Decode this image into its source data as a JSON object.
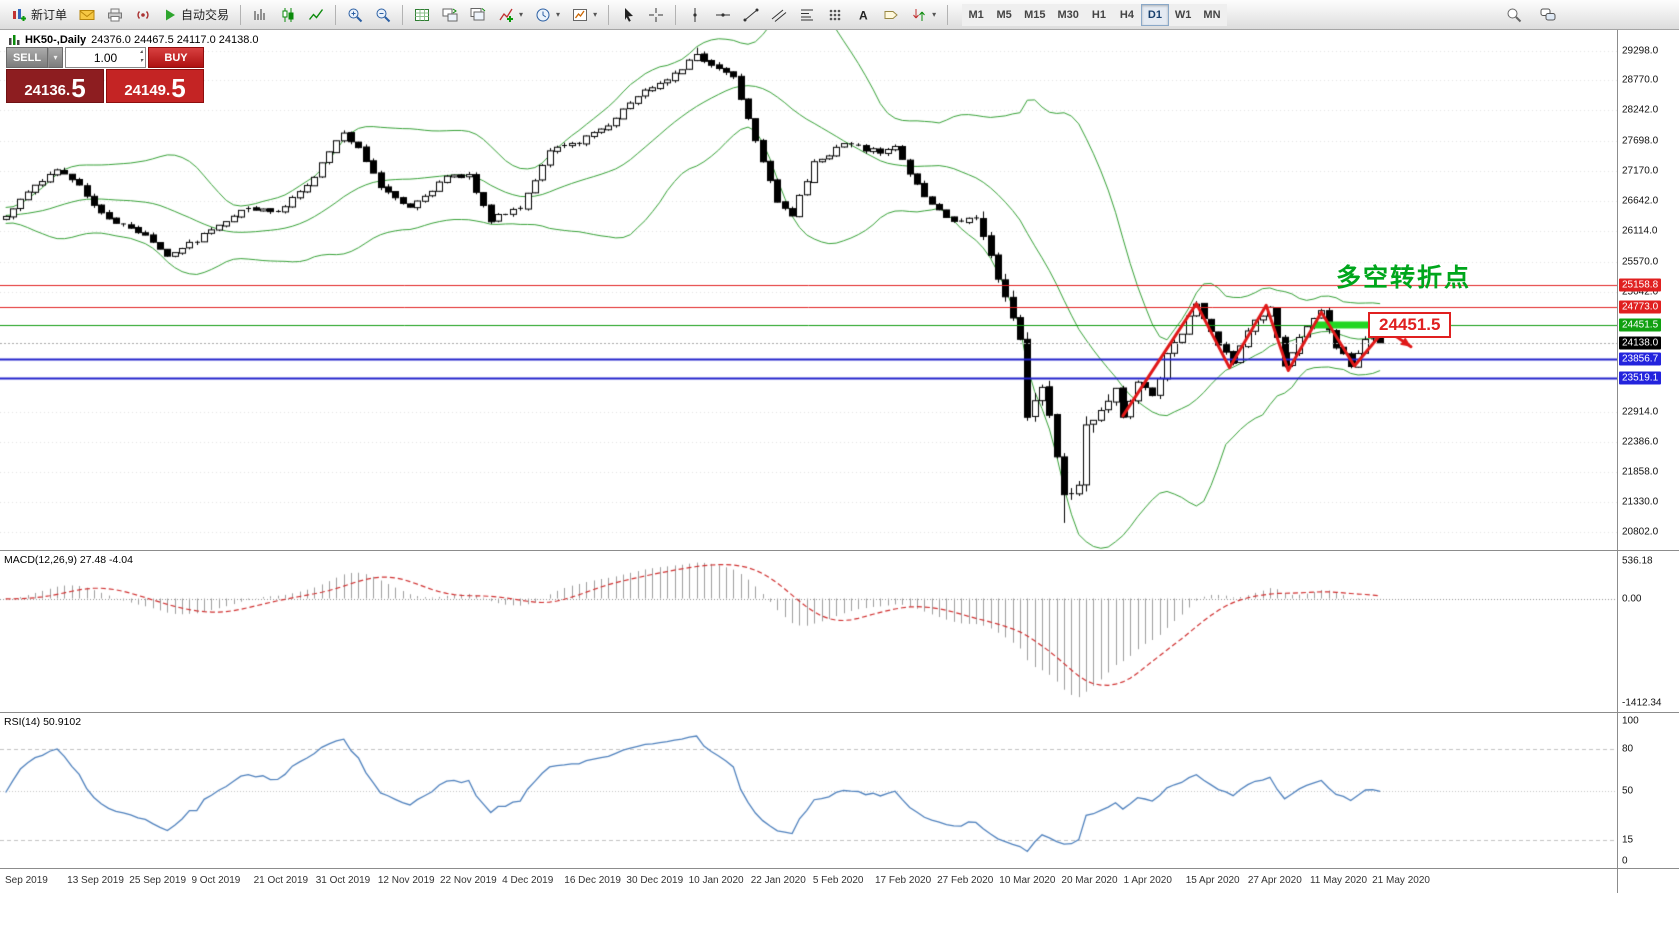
{
  "toolbar": {
    "new_order_label": "新订单",
    "autotrading_label": "自动交易",
    "timeframes": [
      "M1",
      "M5",
      "M15",
      "M30",
      "H1",
      "H4",
      "D1",
      "W1",
      "MN"
    ],
    "active_timeframe": "D1"
  },
  "trade_panel": {
    "sell_label": "SELL",
    "buy_label": "BUY",
    "volume": "1.00",
    "sell_price_main": "24136.",
    "sell_price_big": "5",
    "buy_price_main": "24149.",
    "buy_price_big": "5"
  },
  "chart_header": {
    "symbol_title": "HK50-,Daily",
    "ohlc": "24376.0 24467.5 24117.0 24138.0"
  },
  "chart_data": {
    "type": "candlestick",
    "symbol": "HK50-",
    "period": "Daily",
    "num_candles": 188,
    "price_axis": {
      "min": 20570,
      "max": 29590,
      "ticks": [
        29298.0,
        28770.0,
        28242.0,
        27698.0,
        27170.0,
        26642.0,
        26114.0,
        25570.0,
        25042.0,
        22914.0,
        22386.0,
        21858.0,
        21330.0,
        20802.0
      ]
    },
    "close_anchors": [
      [
        0,
        26400
      ],
      [
        4,
        26900
      ],
      [
        7,
        27200
      ],
      [
        10,
        26900
      ],
      [
        14,
        26300
      ],
      [
        19,
        26050
      ],
      [
        22,
        25700
      ],
      [
        26,
        25950
      ],
      [
        32,
        26500
      ],
      [
        37,
        26450
      ],
      [
        41,
        26900
      ],
      [
        44,
        27500
      ],
      [
        46,
        27850
      ],
      [
        48,
        27600
      ],
      [
        51,
        26900
      ],
      [
        55,
        26550
      ],
      [
        60,
        27050
      ],
      [
        63,
        27100
      ],
      [
        66,
        26300
      ],
      [
        70,
        26550
      ],
      [
        74,
        27500
      ],
      [
        78,
        27700
      ],
      [
        82,
        28000
      ],
      [
        86,
        28500
      ],
      [
        91,
        28900
      ],
      [
        94,
        29200
      ],
      [
        96,
        29050
      ],
      [
        99,
        28850
      ],
      [
        101,
        28100
      ],
      [
        105,
        26650
      ],
      [
        107,
        26400
      ],
      [
        110,
        27300
      ],
      [
        114,
        27650
      ],
      [
        119,
        27500
      ],
      [
        121,
        27600
      ],
      [
        125,
        26700
      ],
      [
        129,
        26250
      ],
      [
        132,
        26350
      ],
      [
        136,
        25000
      ],
      [
        138,
        24150
      ],
      [
        139,
        22900
      ],
      [
        141,
        23350
      ],
      [
        143,
        22200
      ],
      [
        144,
        21500
      ],
      [
        146,
        21700
      ],
      [
        147,
        22700
      ],
      [
        149,
        23050
      ],
      [
        151,
        23300
      ],
      [
        152,
        22850
      ],
      [
        154,
        23450
      ],
      [
        156,
        23200
      ],
      [
        158,
        23900
      ],
      [
        160,
        24350
      ],
      [
        162,
        24800
      ],
      [
        164,
        24300
      ],
      [
        167,
        23750
      ],
      [
        169,
        24400
      ],
      [
        172,
        24750
      ],
      [
        174,
        23700
      ],
      [
        176,
        24250
      ],
      [
        179,
        24650
      ],
      [
        181,
        24100
      ],
      [
        183,
        23780
      ],
      [
        185,
        24200
      ],
      [
        187,
        24138
      ]
    ],
    "last_candle": {
      "open": 24376.0,
      "high": 24467.5,
      "low": 24117.0,
      "close": 24138.0
    },
    "extremes": {
      "high_index": 94,
      "high": 29350,
      "low_index": 144,
      "low": 20960
    },
    "bollinger": {
      "period": 20,
      "deviation": 2,
      "color": "#35a035"
    },
    "levels": [
      {
        "price": 25158.8,
        "color": "#e02020",
        "width": 1
      },
      {
        "price": 24773.0,
        "color": "#e02020",
        "width": 1
      },
      {
        "price": 24451.5,
        "color": "#0f9b0f",
        "width": 1
      },
      {
        "price": 23856.7,
        "color": "#2323cc",
        "width": 2
      },
      {
        "price": 23519.1,
        "color": "#2323cc",
        "width": 2
      }
    ],
    "bid_line": {
      "price": 24138.0,
      "color": "#a8a8a8"
    },
    "scale_labels": [
      {
        "text": "25158.8",
        "price": 25158.8,
        "bg": "#e02020"
      },
      {
        "text": "24773.0",
        "price": 24773.0,
        "bg": "#e02020"
      },
      {
        "text": "24451.5",
        "price": 24451.5,
        "bg": "#10a010"
      },
      {
        "text": "24138.0",
        "price": 24138.0,
        "bg": "#000000"
      },
      {
        "text": "23856.7",
        "price": 23856.7,
        "bg": "#2323dd"
      },
      {
        "text": "23519.1",
        "price": 23519.1,
        "bg": "#2323dd"
      }
    ],
    "annotations": {
      "turning_point_text": "多空转折点",
      "turning_point_color": "#00a61c",
      "price_flag_text": "24451.5",
      "price_flag_color": "#e02020",
      "green_segment": {
        "price": 24451.5,
        "from_index": 178,
        "to_index": 193,
        "color": "#22d622",
        "width": 7
      },
      "zigzag": {
        "color": "#e01818",
        "width": 3,
        "points": [
          [
            152,
            22850
          ],
          [
            162,
            24830
          ],
          [
            166.5,
            23700
          ],
          [
            171.5,
            24800
          ],
          [
            174.5,
            23650
          ],
          [
            179,
            24680
          ],
          [
            183.5,
            23730
          ],
          [
            188,
            24430
          ]
        ]
      },
      "reject_arrow": {
        "color": "#e01818",
        "width": 3,
        "points": [
          [
            187.3,
            24420
          ],
          [
            191.2,
            24070
          ]
        ]
      }
    },
    "candle_colors": {
      "up_fill": "#ffffff",
      "down_fill": "#000000",
      "border": "#000000",
      "wick": "#000000"
    }
  },
  "macd": {
    "label": "MACD(12,26,9) 27.48 -4.04",
    "fast": 12,
    "slow": 26,
    "signal": 9,
    "value": 27.48,
    "signal_value": -4.04,
    "scale_top": "536.18",
    "scale_zero": "0.00",
    "scale_bottom": "-1412.34",
    "histogram_color": "#9e9e9e",
    "signal_color": "#d03030"
  },
  "rsi": {
    "label": "RSI(14) 50.9102",
    "period": 14,
    "value": 50.9102,
    "scale_ticks": [
      100,
      80,
      50,
      15,
      0
    ],
    "level_lines": [
      80,
      50,
      15
    ],
    "line_color": "#4f81bd"
  },
  "x_axis": {
    "dates": [
      "Sep 2019",
      "13 Sep 2019",
      "25 Sep 2019",
      "9 Oct 2019",
      "21 Oct 2019",
      "31 Oct 2019",
      "12 Nov 2019",
      "22 Nov 2019",
      "4 Dec 2019",
      "16 Dec 2019",
      "30 Dec 2019",
      "10 Jan 2020",
      "22 Jan 2020",
      "5 Feb 2020",
      "17 Feb 2020",
      "27 Feb 2020",
      "10 Mar 2020",
      "20 Mar 2020",
      "1 Apr 2020",
      "15 Apr 2020",
      "27 Apr 2020",
      "11 May 2020",
      "21 May 2020"
    ]
  }
}
